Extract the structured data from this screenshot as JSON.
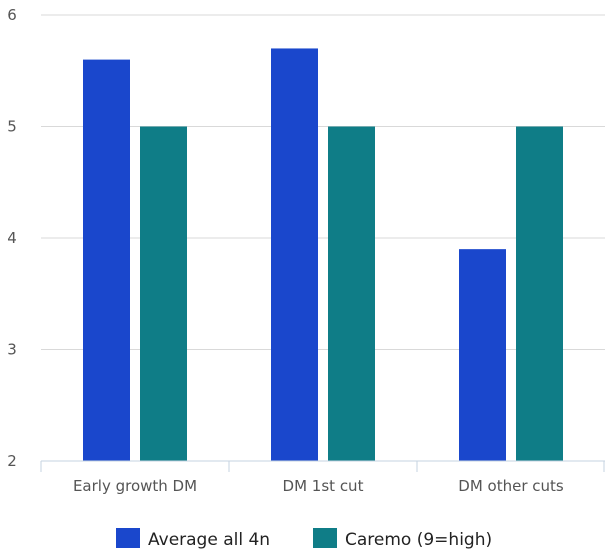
{
  "chart_data": {
    "type": "bar",
    "title": "",
    "xlabel": "",
    "ylabel": "",
    "categories": [
      "Early growth DM",
      "DM 1st cut",
      "DM other cuts"
    ],
    "series": [
      {
        "name": "Average all 4n",
        "color": "#1a47cc",
        "values": [
          5.6,
          5.7,
          3.9
        ]
      },
      {
        "name": "Caremo (9=high)",
        "color": "#0f7d87",
        "values": [
          5.0,
          5.0,
          5.0
        ]
      }
    ],
    "ylim": [
      2,
      6
    ],
    "yticks": [
      2,
      3,
      4,
      5,
      6
    ],
    "grid": true,
    "legend_position": "bottom-center"
  }
}
